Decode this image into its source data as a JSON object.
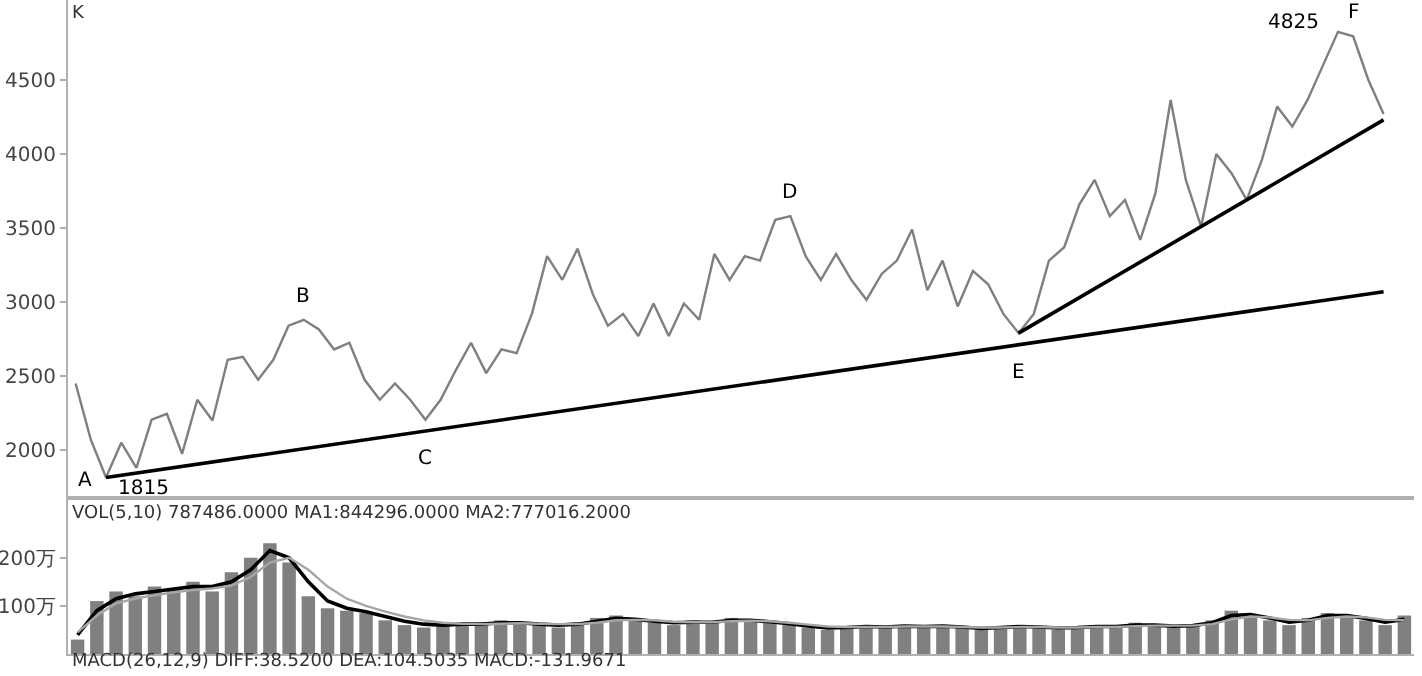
{
  "chart_data": [
    {
      "type": "line",
      "title": "K",
      "categories": [
        null,
        null,
        null,
        null,
        null,
        null,
        null,
        null,
        null,
        null,
        null,
        null,
        null,
        null,
        null,
        null,
        null,
        null,
        null,
        null,
        null,
        null,
        null,
        null,
        null,
        null,
        null,
        null,
        null,
        null,
        null,
        null,
        null,
        null,
        null,
        null,
        null,
        null,
        null,
        null,
        null,
        null,
        null,
        null,
        null,
        null,
        null,
        null,
        null,
        null,
        null,
        null,
        null,
        null,
        null,
        null,
        null,
        null,
        null,
        null,
        null,
        null,
        null,
        null,
        null,
        null,
        null,
        null,
        null,
        null,
        null,
        null,
        null,
        null,
        null,
        null,
        null,
        null,
        null,
        null,
        null,
        null,
        null,
        null,
        null,
        null,
        null
      ],
      "series": [
        {
          "type": "line",
          "color": "#7f7f7f",
          "values": [
            2450,
            2070,
            1815,
            2050,
            1880,
            2205,
            2245,
            1975,
            2340,
            2200,
            2610,
            2630,
            2475,
            2610,
            2840,
            2880,
            2815,
            2680,
            2725,
            2475,
            2340,
            2450,
            2340,
            2205,
            2340,
            2540,
            2725,
            2520,
            2680,
            2655,
            2920,
            3310,
            3150,
            3360,
            3055,
            2840,
            2920,
            2770,
            2990,
            2770,
            2990,
            2880,
            3325,
            3150,
            3310,
            3280,
            3555,
            3580,
            3310,
            3150,
            3325,
            3150,
            3015,
            3190,
            3280,
            3490,
            3080,
            3280,
            2970,
            3210,
            3120,
            2920,
            2790,
            2920,
            3280,
            3370,
            3660,
            3825,
            3580,
            3690,
            3420,
            3735,
            4365,
            3825,
            3510,
            4000,
            3870,
            3690,
            3960,
            4320,
            4185,
            4365,
            4595,
            4825,
            4795,
            4500,
            4270
          ],
          "value_labels": [
            null,
            null,
            "A",
            null,
            null,
            null,
            null,
            null,
            null,
            null,
            null,
            null,
            null,
            null,
            null,
            "B",
            null,
            null,
            null,
            null,
            null,
            null,
            null,
            "C",
            null,
            null,
            null,
            null,
            null,
            null,
            null,
            null,
            null,
            null,
            null,
            null,
            null,
            null,
            null,
            null,
            null,
            null,
            null,
            null,
            null,
            null,
            null,
            "D",
            null,
            null,
            null,
            null,
            null,
            null,
            null,
            null,
            null,
            null,
            null,
            null,
            null,
            null,
            "E",
            null,
            null,
            null,
            null,
            null,
            null,
            null,
            null,
            null,
            null,
            null,
            null,
            null,
            null,
            null,
            null,
            null,
            null,
            null,
            null,
            "4825",
            "F",
            null,
            null
          ]
        },
        {
          "type": "line",
          "color": "#000000",
          "values": [
            null,
            null,
            1815,
            null,
            null,
            null,
            null,
            null,
            null,
            null,
            null,
            null,
            null,
            null,
            null,
            null,
            null,
            null,
            null,
            null,
            null,
            null,
            null,
            null,
            null,
            null,
            null,
            null,
            null,
            null,
            null,
            null,
            null,
            null,
            null,
            null,
            null,
            null,
            null,
            null,
            null,
            null,
            null,
            null,
            null,
            null,
            null,
            null,
            null,
            null,
            null,
            null,
            null,
            null,
            null,
            null,
            null,
            null,
            null,
            null,
            null,
            null,
            null,
            null,
            null,
            null,
            null,
            null,
            null,
            null,
            null,
            null,
            null,
            null,
            null,
            null,
            null,
            null,
            null,
            null,
            null,
            null,
            null,
            null,
            null,
            null,
            3070
          ],
          "value_labels": [
            null,
            null,
            "1815",
            null,
            null,
            null,
            null,
            null,
            null,
            null,
            null,
            null,
            null,
            null,
            null,
            null,
            null,
            null,
            null,
            null,
            null,
            null,
            null,
            null,
            null,
            null,
            null,
            null,
            null,
            null,
            null,
            null,
            null,
            null,
            null,
            null,
            null,
            null,
            null,
            null,
            null,
            null,
            null,
            null,
            null,
            null,
            null,
            null,
            null,
            null,
            null,
            null,
            null,
            null,
            null,
            null,
            null,
            null,
            null,
            null,
            null,
            null,
            null,
            null,
            null,
            null,
            null,
            null,
            null,
            null,
            null,
            null,
            null,
            null,
            null,
            null,
            null,
            null,
            null,
            null,
            null,
            null,
            null,
            null,
            null,
            null,
            null
          ]
        },
        {
          "type": "line",
          "color": "#000000",
          "values": [
            null,
            null,
            null,
            null,
            null,
            null,
            null,
            null,
            null,
            null,
            null,
            null,
            null,
            null,
            null,
            null,
            null,
            null,
            null,
            null,
            null,
            null,
            null,
            null,
            null,
            null,
            null,
            null,
            null,
            null,
            null,
            null,
            null,
            null,
            null,
            null,
            null,
            null,
            null,
            null,
            null,
            null,
            null,
            null,
            null,
            null,
            null,
            null,
            null,
            null,
            null,
            null,
            null,
            null,
            null,
            null,
            null,
            null,
            null,
            null,
            null,
            null,
            2790,
            null,
            null,
            null,
            null,
            null,
            null,
            null,
            null,
            null,
            null,
            null,
            null,
            null,
            null,
            null,
            null,
            null,
            null,
            null,
            null,
            null,
            null,
            null,
            4230
          ]
        }
      ],
      "ylim": [
        1690,
        5040
      ],
      "yticks": [
        2000,
        2500,
        3000,
        3500,
        4000,
        4500
      ],
      "tick_labels": "y"
    },
    {
      "type": "bar",
      "title": "VOL(5,10) 787486.0000 MA1:844296.0000 MA2:777016.2000",
      "categories": [
        null,
        null,
        null,
        null,
        null,
        null,
        null,
        null,
        null,
        null,
        null,
        null,
        null,
        null,
        null,
        null,
        null,
        null,
        null,
        null,
        null,
        null,
        null,
        null,
        null,
        null,
        null,
        null,
        null,
        null,
        null,
        null,
        null,
        null,
        null,
        null,
        null,
        null,
        null,
        null,
        null,
        null,
        null,
        null,
        null,
        null,
        null,
        null,
        null,
        null,
        null,
        null,
        null,
        null,
        null,
        null,
        null,
        null,
        null,
        null,
        null,
        null,
        null,
        null,
        null,
        null,
        null,
        null,
        null,
        null
      ],
      "series": [
        {
          "type": "bar",
          "color": "#808080",
          "values": [
            30,
            110,
            130,
            120,
            140,
            135,
            150,
            130,
            170,
            200,
            230,
            190,
            120,
            95,
            90,
            85,
            70,
            60,
            55,
            60,
            65,
            60,
            70,
            65,
            60,
            55,
            65,
            75,
            80,
            70,
            65,
            60,
            70,
            65,
            75,
            70,
            65,
            60,
            55,
            50,
            55,
            60,
            55,
            60,
            55,
            60,
            55,
            50,
            55,
            60,
            55,
            50,
            55,
            60,
            55,
            65,
            60,
            55,
            60,
            70,
            90,
            80,
            70,
            60,
            75,
            85,
            80,
            70,
            60,
            80
          ]
        },
        {
          "type": "line",
          "color": "#000000",
          "values": [
            40,
            90,
            115,
            125,
            130,
            135,
            140,
            140,
            150,
            175,
            215,
            200,
            150,
            110,
            95,
            88,
            78,
            68,
            62,
            60,
            62,
            62,
            65,
            65,
            62,
            60,
            62,
            68,
            74,
            72,
            68,
            65,
            66,
            66,
            70,
            70,
            67,
            63,
            58,
            54,
            55,
            57,
            56,
            58,
            57,
            58,
            56,
            53,
            55,
            57,
            56,
            54,
            55,
            57,
            57,
            60,
            60,
            58,
            59,
            65,
            80,
            82,
            75,
            66,
            70,
            80,
            80,
            74,
            66,
            72
          ]
        },
        {
          "type": "line",
          "color": "#a6a6a6",
          "values": [
            45,
            80,
            105,
            115,
            122,
            128,
            133,
            136,
            142,
            160,
            190,
            200,
            175,
            140,
            115,
            100,
            88,
            78,
            70,
            65,
            63,
            62,
            63,
            64,
            63,
            62,
            62,
            65,
            70,
            71,
            70,
            67,
            66,
            66,
            68,
            69,
            68,
            65,
            61,
            57,
            56,
            56,
            56,
            57,
            57,
            57,
            56,
            55,
            55,
            56,
            56,
            55,
            55,
            56,
            56,
            58,
            59,
            59,
            59,
            62,
            72,
            78,
            76,
            71,
            70,
            75,
            78,
            76,
            71,
            70
          ]
        }
      ],
      "ylim": [
        0,
        320
      ],
      "yticks": [
        {
          "value": 100,
          "label": "100万"
        },
        {
          "value": 200,
          "label": "200万"
        }
      ],
      "tick_labels": "y"
    },
    {
      "type": "other",
      "title": "MACD(26,12,9) DIFF:38.5200 DEA:104.5035 MACD:-131.9671"
    }
  ]
}
